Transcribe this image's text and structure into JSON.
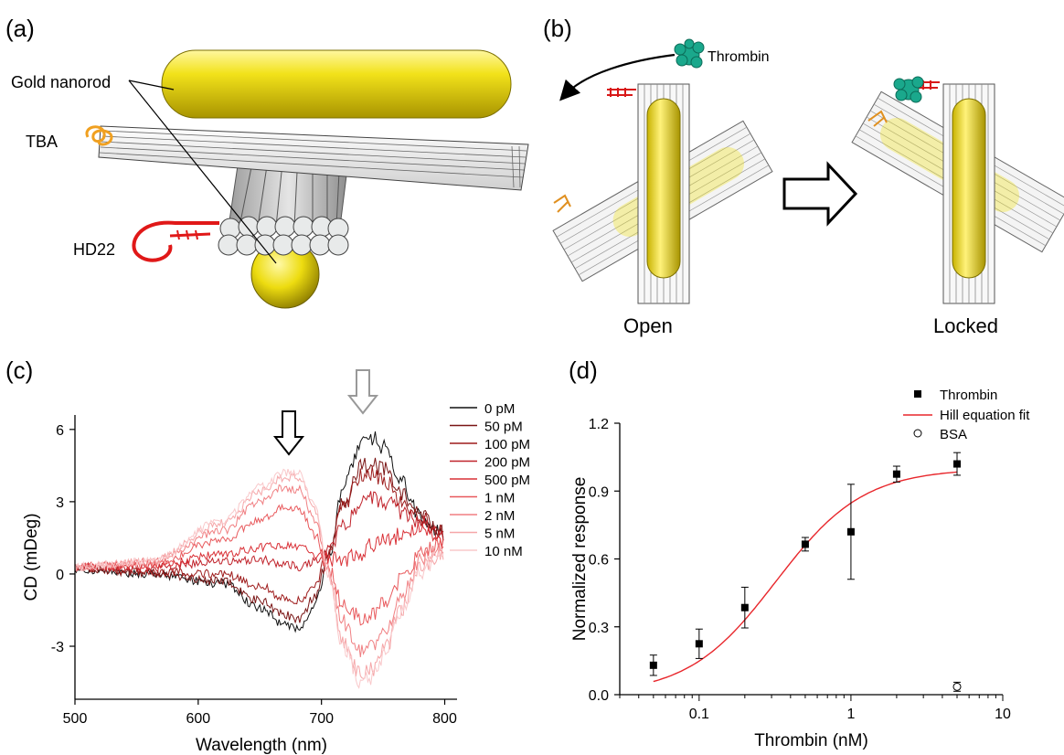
{
  "panels": {
    "a": {
      "label": "(a)",
      "callouts": [
        "Gold nanorod",
        "TBA",
        "HD22"
      ]
    },
    "b": {
      "label": "(b)",
      "molecule_label": "Thrombin",
      "state_left": "Open",
      "state_right": "Locked"
    },
    "c": {
      "label": "(c)",
      "chart_data": {
        "type": "line",
        "title": "",
        "xlabel": "Wavelength (nm)",
        "ylabel": "CD (mDeg)",
        "xlim": [
          500,
          810
        ],
        "ylim": [
          -5.2,
          6.6
        ],
        "xticks": [
          500,
          600,
          700,
          800
        ],
        "yticks": [
          -3,
          0,
          3,
          6
        ],
        "legend": "top-right",
        "series": [
          {
            "name": "0 pM",
            "color": "#111111",
            "anchors": [
              [
                500,
                0.2
              ],
              [
                560,
                0.0
              ],
              [
                620,
                -0.4
              ],
              [
                650,
                -1.4
              ],
              [
                670,
                -2.1
              ],
              [
                682,
                -2.3
              ],
              [
                695,
                -1.2
              ],
              [
                705,
                0.6
              ],
              [
                718,
                3.6
              ],
              [
                732,
                5.4
              ],
              [
                740,
                5.7
              ],
              [
                752,
                5.2
              ],
              [
                765,
                3.8
              ],
              [
                780,
                2.4
              ],
              [
                795,
                1.8
              ],
              [
                800,
                1.5
              ]
            ]
          },
          {
            "name": "50 pM",
            "color": "#7a1515",
            "anchors": [
              [
                500,
                0.2
              ],
              [
                560,
                0.05
              ],
              [
                620,
                -0.3
              ],
              [
                650,
                -1.1
              ],
              [
                670,
                -1.7
              ],
              [
                682,
                -1.9
              ],
              [
                695,
                -0.9
              ],
              [
                705,
                0.7
              ],
              [
                718,
                3.0
              ],
              [
                732,
                4.4
              ],
              [
                740,
                4.6
              ],
              [
                752,
                4.3
              ],
              [
                765,
                3.4
              ],
              [
                780,
                2.4
              ],
              [
                795,
                1.8
              ],
              [
                800,
                1.6
              ]
            ]
          },
          {
            "name": "100 pM",
            "color": "#9e1c1c",
            "anchors": [
              [
                500,
                0.25
              ],
              [
                560,
                0.1
              ],
              [
                620,
                0.0
              ],
              [
                650,
                -0.5
              ],
              [
                670,
                -1.0
              ],
              [
                682,
                -1.1
              ],
              [
                695,
                -0.4
              ],
              [
                705,
                0.8
              ],
              [
                718,
                2.8
              ],
              [
                732,
                4.1
              ],
              [
                740,
                4.2
              ],
              [
                752,
                3.9
              ],
              [
                765,
                3.0
              ],
              [
                780,
                2.3
              ],
              [
                795,
                1.8
              ],
              [
                800,
                1.5
              ]
            ]
          },
          {
            "name": "200 pM",
            "color": "#c0222a",
            "anchors": [
              [
                500,
                0.3
              ],
              [
                560,
                0.25
              ],
              [
                620,
                0.5
              ],
              [
                650,
                0.6
              ],
              [
                670,
                0.4
              ],
              [
                682,
                0.3
              ],
              [
                695,
                0.5
              ],
              [
                705,
                0.9
              ],
              [
                718,
                2.0
              ],
              [
                732,
                3.0
              ],
              [
                740,
                3.2
              ],
              [
                752,
                3.0
              ],
              [
                765,
                2.6
              ],
              [
                780,
                2.2
              ],
              [
                795,
                1.6
              ],
              [
                800,
                1.4
              ]
            ]
          },
          {
            "name": "500 pM",
            "color": "#d93036",
            "anchors": [
              [
                500,
                0.3
              ],
              [
                560,
                0.3
              ],
              [
                620,
                0.8
              ],
              [
                650,
                1.1
              ],
              [
                670,
                1.2
              ],
              [
                682,
                1.1
              ],
              [
                695,
                0.8
              ],
              [
                705,
                0.6
              ],
              [
                718,
                0.6
              ],
              [
                732,
                0.8
              ],
              [
                740,
                1.2
              ],
              [
                752,
                1.4
              ],
              [
                765,
                1.6
              ],
              [
                780,
                1.8
              ],
              [
                795,
                1.5
              ],
              [
                800,
                1.3
              ]
            ]
          },
          {
            "name": "1 nM",
            "color": "#e8595c",
            "anchors": [
              [
                500,
                0.3
              ],
              [
                560,
                0.4
              ],
              [
                620,
                1.4
              ],
              [
                650,
                2.3
              ],
              [
                670,
                2.8
              ],
              [
                682,
                2.7
              ],
              [
                695,
                1.6
              ],
              [
                705,
                0.3
              ],
              [
                718,
                -1.2
              ],
              [
                732,
                -1.8
              ],
              [
                740,
                -1.7
              ],
              [
                752,
                -1.2
              ],
              [
                765,
                -0.2
              ],
              [
                780,
                0.8
              ],
              [
                795,
                1.2
              ],
              [
                800,
                1.1
              ]
            ]
          },
          {
            "name": "2 nM",
            "color": "#f07f82",
            "anchors": [
              [
                500,
                0.3
              ],
              [
                560,
                0.5
              ],
              [
                620,
                1.8
              ],
              [
                650,
                3.0
              ],
              [
                670,
                3.6
              ],
              [
                682,
                3.5
              ],
              [
                695,
                2.2
              ],
              [
                705,
                0.2
              ],
              [
                718,
                -2.0
              ],
              [
                732,
                -3.2
              ],
              [
                740,
                -3.0
              ],
              [
                752,
                -2.2
              ],
              [
                765,
                -0.8
              ],
              [
                780,
                0.5
              ],
              [
                795,
                1.0
              ],
              [
                800,
                0.9
              ]
            ]
          },
          {
            "name": "5 nM",
            "color": "#f5a6a8",
            "anchors": [
              [
                500,
                0.3
              ],
              [
                560,
                0.5
              ],
              [
                620,
                2.1
              ],
              [
                650,
                3.4
              ],
              [
                670,
                4.0
              ],
              [
                682,
                4.0
              ],
              [
                695,
                2.6
              ],
              [
                705,
                0.1
              ],
              [
                718,
                -2.8
              ],
              [
                732,
                -4.2
              ],
              [
                740,
                -4.0
              ],
              [
                752,
                -3.1
              ],
              [
                765,
                -1.4
              ],
              [
                780,
                0.2
              ],
              [
                795,
                0.8
              ],
              [
                800,
                0.7
              ]
            ]
          },
          {
            "name": "10 nM",
            "color": "#f9c8ca",
            "anchors": [
              [
                500,
                0.3
              ],
              [
                560,
                0.5
              ],
              [
                620,
                2.2
              ],
              [
                650,
                3.6
              ],
              [
                670,
                4.2
              ],
              [
                682,
                4.2
              ],
              [
                695,
                2.8
              ],
              [
                705,
                0.0
              ],
              [
                718,
                -3.0
              ],
              [
                732,
                -4.5
              ],
              [
                740,
                -4.3
              ],
              [
                752,
                -3.3
              ],
              [
                765,
                -1.6
              ],
              [
                780,
                0.1
              ],
              [
                795,
                0.7
              ],
              [
                800,
                0.6
              ]
            ]
          }
        ]
      }
    },
    "d": {
      "label": "(d)",
      "chart_data": {
        "type": "scatter",
        "title": "",
        "xlabel": "Thrombin (nM)",
        "ylabel": "Normalized response",
        "xscale": "log",
        "xlim": [
          0.03,
          10
        ],
        "ylim": [
          0.0,
          1.2
        ],
        "xticks": [
          0.1,
          1,
          10
        ],
        "xtick_labels": [
          "0.1",
          "1",
          "10"
        ],
        "yticks": [
          0.0,
          0.3,
          0.6,
          0.9,
          1.2
        ],
        "ytick_labels": [
          "0.0",
          "0.3",
          "0.6",
          "0.9",
          "1.2"
        ],
        "legend": "top-right",
        "series": [
          {
            "name": "Thrombin",
            "marker": "filled-square",
            "x": [
              0.05,
              0.1,
              0.2,
              0.5,
              1,
              2,
              5
            ],
            "y": [
              0.13,
              0.225,
              0.385,
              0.665,
              0.72,
              0.975,
              1.02
            ],
            "yerr": [
              0.045,
              0.065,
              0.09,
              0.03,
              0.21,
              0.035,
              0.05
            ]
          },
          {
            "name": "BSA",
            "marker": "open-circle",
            "x": [
              5
            ],
            "y": [
              0.035
            ],
            "yerr": [
              0.02
            ]
          }
        ],
        "fit": {
          "name": "Hill equation fit",
          "color": "#e8262b",
          "x_range": [
            0.05,
            5
          ],
          "ymax": 1.0,
          "ec50": 0.32,
          "n": 1.5
        }
      }
    }
  }
}
